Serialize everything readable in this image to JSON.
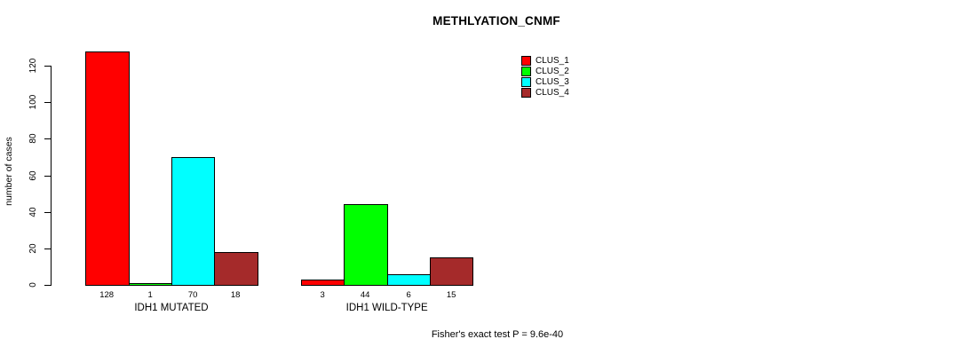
{
  "chart_data": {
    "type": "bar",
    "title": "METHLYATION_CNMF",
    "ylabel": "number of cases",
    "xlabel": "",
    "ylim": [
      0,
      128
    ],
    "yticks": [
      0,
      20,
      40,
      60,
      80,
      100,
      120
    ],
    "grid": false,
    "legend_position": "top-right",
    "groups": [
      "IDH1 MUTATED",
      "IDH1 WILD-TYPE"
    ],
    "series": [
      {
        "name": "CLUS_1",
        "color": "#ff0000",
        "values": [
          128,
          3
        ]
      },
      {
        "name": "CLUS_2",
        "color": "#00ff00",
        "values": [
          1,
          44
        ]
      },
      {
        "name": "CLUS_3",
        "color": "#00ffff",
        "values": [
          70,
          6
        ]
      },
      {
        "name": "CLUS_4",
        "color": "#a52a2a",
        "values": [
          18,
          15
        ]
      }
    ],
    "annotation": "Fisher's exact test P = 9.6e-40"
  }
}
